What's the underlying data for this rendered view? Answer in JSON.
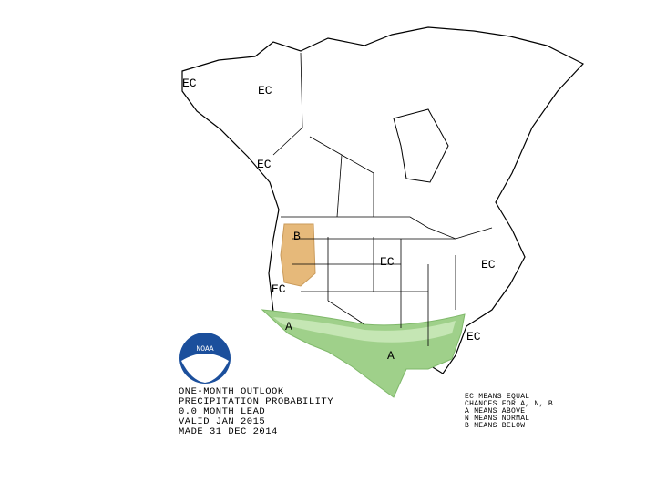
{
  "map": {
    "labels": [
      "EC",
      "EC",
      "EC",
      "B",
      "EC",
      "EC",
      "EC",
      "A",
      "A",
      "EC"
    ],
    "logo": "NOAA",
    "info_lines": [
      "ONE-MONTH OUTLOOK",
      "PRECIPITATION PROBABILITY",
      "0.0 MONTH LEAD",
      "VALID JAN 2015",
      "MADE 31 DEC 2014"
    ],
    "legend_lines": [
      "EC MEANS EQUAL",
      "CHANCES FOR A, N, B",
      "A MEANS ABOVE",
      "N MEANS NORMAL",
      "B MEANS BELOW"
    ]
  }
}
